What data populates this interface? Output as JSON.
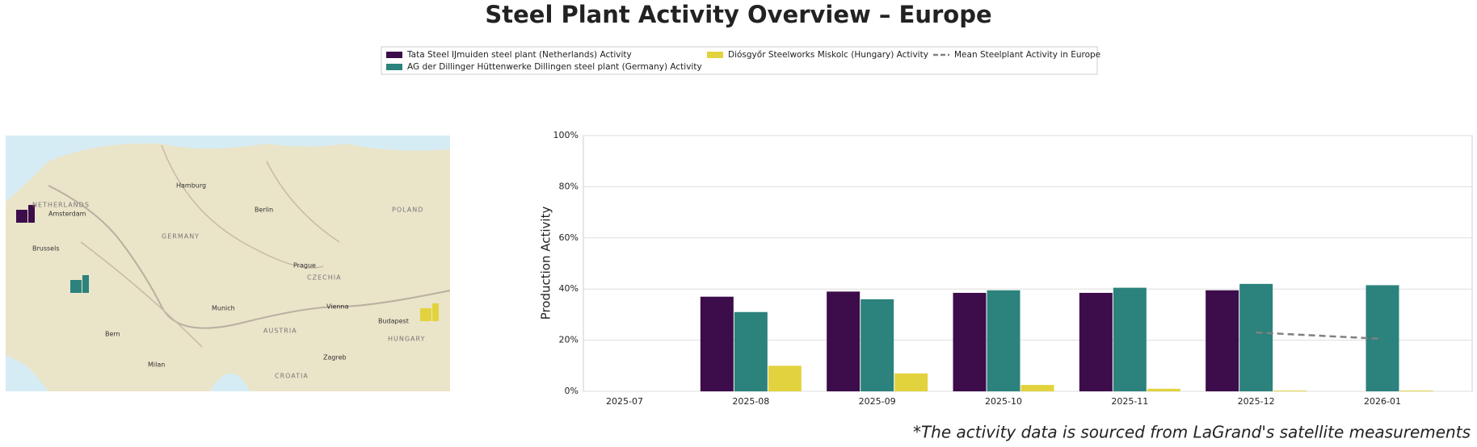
{
  "chart_data": {
    "type": "bar",
    "title": "Steel Plant Activity Overview – Europe",
    "y_label": "Production Activity",
    "footnote": "*The activity data is sourced from LaGrand's satellite measurements",
    "categories": [
      "2025-07",
      "2025-08",
      "2025-09",
      "2025-10",
      "2025-11",
      "2025-12",
      "2026-01"
    ],
    "series": [
      {
        "name": "Tata Steel IJmuiden steel plant (Netherlands) Activity",
        "color": "#3d0c4a",
        "values": [
          null,
          37,
          39,
          38.5,
          38.5,
          39.5,
          null
        ]
      },
      {
        "name": "AG der Dillinger Hüttenwerke Dillingen steel plant (Germany) Activity",
        "color": "#2c827c",
        "values": [
          null,
          31,
          36,
          39.5,
          40.5,
          42,
          41.5
        ]
      },
      {
        "name": "Diósgyőr Steelworks Miskolc (Hungary) Activity",
        "color": "#e2d33e",
        "values": [
          null,
          10,
          7,
          2.5,
          1,
          0.3,
          0.3
        ]
      },
      {
        "name": "Mean Steelplant Activity in Europe",
        "type": "line",
        "dashed": true,
        "color": "#808080",
        "values": [
          null,
          null,
          null,
          null,
          null,
          23,
          20.5
        ]
      }
    ],
    "ylim": [
      0,
      100
    ],
    "yticks": [
      {
        "value": 0,
        "label": "0%"
      },
      {
        "value": 20,
        "label": "20%"
      },
      {
        "value": 40,
        "label": "40%"
      },
      {
        "value": 60,
        "label": "60%"
      },
      {
        "value": 80,
        "label": "80%"
      },
      {
        "value": 100,
        "label": "100%"
      }
    ],
    "grid": true
  },
  "map": {
    "labels": [
      "NETHERLANDS",
      "Amsterdam",
      "Hamburg",
      "Berlin",
      "GERMANY",
      "Prague",
      "CZECHIA",
      "Munich",
      "Vienna",
      "AUSTRIA",
      "Budapest",
      "HUNGARY",
      "POLAND",
      "Milan",
      "Bern",
      "CROATIA",
      "Brussels",
      "Zagreb"
    ]
  }
}
